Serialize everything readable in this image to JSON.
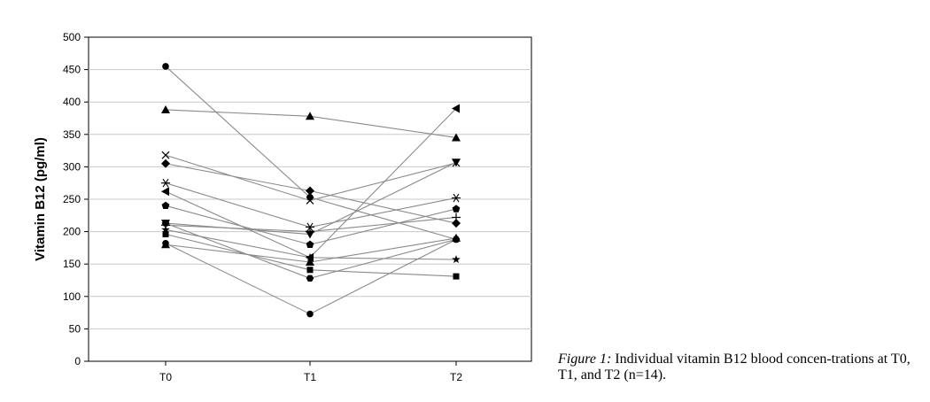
{
  "chart_data": {
    "type": "line",
    "categories": [
      "T0",
      "T1",
      "T2"
    ],
    "ylabel": "Vitamin B12 (pg/ml)",
    "ylim": [
      0,
      500
    ],
    "yticks": [
      0,
      50,
      100,
      150,
      200,
      250,
      300,
      350,
      400,
      450,
      500
    ],
    "grid": true,
    "series": [
      {
        "marker": "circle",
        "values": [
          455,
          253,
          188
        ]
      },
      {
        "marker": "triangle-up",
        "values": [
          388,
          378,
          345
        ]
      },
      {
        "marker": "x",
        "values": [
          318,
          248,
          306
        ]
      },
      {
        "marker": "diamond",
        "values": [
          305,
          263,
          213
        ]
      },
      {
        "marker": "asterisk",
        "values": [
          275,
          207,
          252
        ]
      },
      {
        "marker": "triangle-left",
        "values": [
          262,
          160,
          390
        ]
      },
      {
        "marker": "pentagon",
        "values": [
          240,
          180,
          235
        ]
      },
      {
        "marker": "triangle-down",
        "values": [
          213,
          196,
          307
        ]
      },
      {
        "marker": "plus",
        "values": [
          210,
          200,
          222
        ]
      },
      {
        "marker": "star",
        "values": [
          203,
          160,
          157
        ]
      },
      {
        "marker": "square",
        "values": [
          196,
          141,
          131
        ]
      },
      {
        "marker": "hexagon",
        "values": [
          213,
          128,
          188
        ]
      },
      {
        "marker": "circle",
        "values": [
          182,
          73,
          188
        ]
      },
      {
        "marker": "triangle-up",
        "values": [
          180,
          153,
          190
        ]
      }
    ]
  },
  "caption": {
    "label": "Figure 1:",
    "text": " Individual vitamin B12 blood concen-trations at T0, T1, and T2 (n=14)."
  }
}
